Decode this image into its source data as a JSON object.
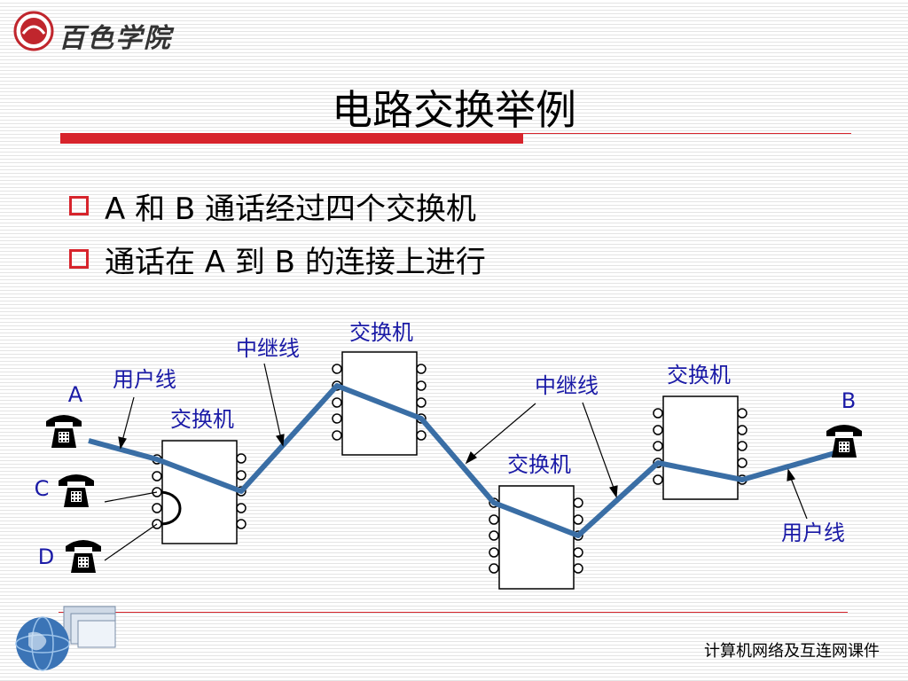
{
  "header": {
    "logo_text": "百色学院"
  },
  "title": "电路交换举例",
  "bullets": [
    "A 和 B 通话经过四个交换机",
    "通话在 A 到 B 的连接上进行"
  ],
  "diagram": {
    "labels": {
      "switch": "交换机",
      "trunk": "中继线",
      "user_line": "用户线",
      "phone_a": "A",
      "phone_b": "B",
      "phone_c": "C",
      "phone_d": "D"
    }
  },
  "footer": {
    "course": "计算机网络及互连网课件"
  },
  "colors": {
    "accent_red": "#d7242c",
    "path_blue": "#3a6ea5",
    "label_blue": "#1a1aa6"
  }
}
